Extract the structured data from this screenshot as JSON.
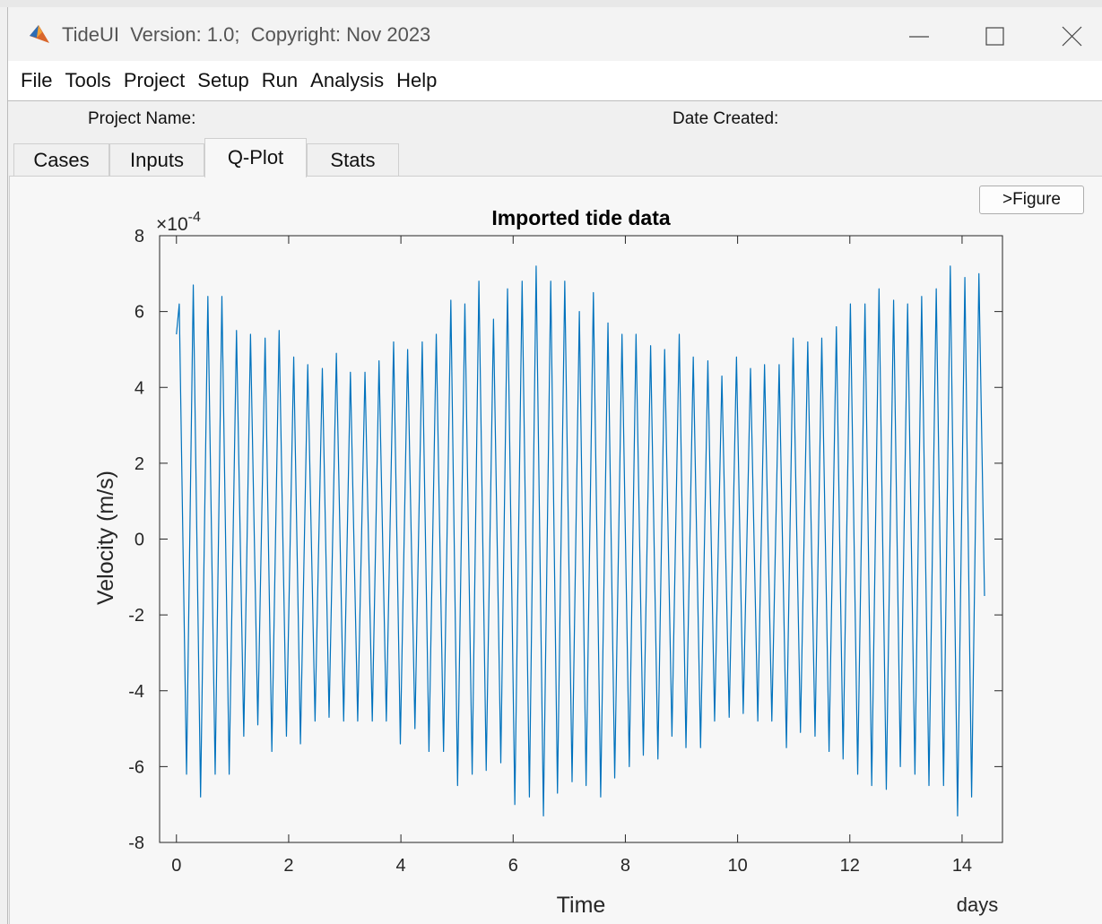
{
  "window": {
    "title": "TideUI  Version: 1.0;  Copyright: Nov 2023"
  },
  "menu": [
    "File",
    "Tools",
    "Project",
    "Setup",
    "Run",
    "Analysis",
    "Help"
  ],
  "header": {
    "project_name": "Project Name:",
    "date_created": "Date Created:"
  },
  "tabs": {
    "items": [
      "Cases",
      "Inputs",
      "Q-Plot",
      "Stats"
    ],
    "selected": "Q-Plot"
  },
  "button": ">Figure",
  "chart_data": {
    "type": "line",
    "title": "Imported tide data",
    "x_label": "Time",
    "x_unit": "days",
    "y_label": "Velocity (m/s)",
    "y_exponent": {
      "base": "×10",
      "power": "-4"
    },
    "color": "#0072bd",
    "xlim": [
      -0.3,
      14.72
    ],
    "ylim": [
      -8,
      8
    ],
    "xticks": [
      0,
      2,
      4,
      6,
      8,
      10,
      12,
      14
    ],
    "yticks": [
      -8,
      -6,
      -4,
      -2,
      0,
      2,
      4,
      6,
      8
    ],
    "x": [
      0,
      0.05,
      0.18,
      0.3,
      0.43,
      0.56,
      0.69,
      0.81,
      0.94,
      1.07,
      1.2,
      1.32,
      1.45,
      1.58,
      1.7,
      1.83,
      1.96,
      2.09,
      2.21,
      2.34,
      2.47,
      2.6,
      2.72,
      2.85,
      2.98,
      3.1,
      3.23,
      3.36,
      3.49,
      3.61,
      3.74,
      3.87,
      3.99,
      4.12,
      4.25,
      4.38,
      4.5,
      4.63,
      4.76,
      4.89,
      5.01,
      5.14,
      5.27,
      5.39,
      5.52,
      5.65,
      5.78,
      5.9,
      6.03,
      6.16,
      6.29,
      6.41,
      6.54,
      6.67,
      6.79,
      6.92,
      7.05,
      7.18,
      7.3,
      7.43,
      7.56,
      7.69,
      7.81,
      7.94,
      8.07,
      8.19,
      8.32,
      8.45,
      8.58,
      8.7,
      8.83,
      8.96,
      9.08,
      9.21,
      9.34,
      9.47,
      9.59,
      9.72,
      9.85,
      9.98,
      10.1,
      10.23,
      10.36,
      10.48,
      10.61,
      10.74,
      10.87,
      10.99,
      11.12,
      11.25,
      11.38,
      11.5,
      11.63,
      11.76,
      11.88,
      12.01,
      12.14,
      12.27,
      12.39,
      12.52,
      12.65,
      12.78,
      12.9,
      13.03,
      13.16,
      13.28,
      13.41,
      13.54,
      13.67,
      13.79,
      13.92,
      14.05,
      14.17,
      14.3,
      14.4
    ],
    "values": [
      5.4,
      6.2,
      -6.2,
      6.7,
      -6.8,
      6.4,
      -6.2,
      6.4,
      -6.2,
      5.5,
      -5.2,
      5.4,
      -4.9,
      5.3,
      -5.6,
      5.5,
      -5.2,
      4.8,
      -5.4,
      4.6,
      -4.8,
      4.5,
      -4.7,
      4.9,
      -4.8,
      4.4,
      -4.8,
      4.4,
      -4.8,
      4.7,
      -4.8,
      5.2,
      -5.4,
      5.0,
      -5.0,
      5.2,
      -5.6,
      5.4,
      -5.6,
      6.3,
      -6.5,
      6.2,
      -6.2,
      6.8,
      -6.1,
      5.8,
      -5.9,
      6.6,
      -7.0,
      6.8,
      -6.8,
      7.2,
      -7.3,
      6.8,
      -6.7,
      6.8,
      -6.4,
      6.0,
      -6.5,
      6.5,
      -6.8,
      5.7,
      -6.3,
      5.4,
      -6.0,
      5.4,
      -5.7,
      5.1,
      -5.8,
      5.0,
      -5.2,
      5.4,
      -5.5,
      4.8,
      -5.5,
      4.7,
      -4.8,
      4.3,
      -4.7,
      4.8,
      -4.6,
      4.5,
      -4.8,
      4.6,
      -4.8,
      4.6,
      -5.5,
      5.3,
      -5.1,
      5.2,
      -5.2,
      5.3,
      -5.6,
      5.6,
      -5.8,
      6.2,
      -6.2,
      6.2,
      -6.5,
      6.6,
      -6.6,
      6.3,
      -6.0,
      6.2,
      -6.2,
      6.4,
      -6.5,
      6.6,
      -6.5,
      7.2,
      -7.3,
      6.9,
      -6.8,
      7.0,
      -1.5
    ]
  }
}
